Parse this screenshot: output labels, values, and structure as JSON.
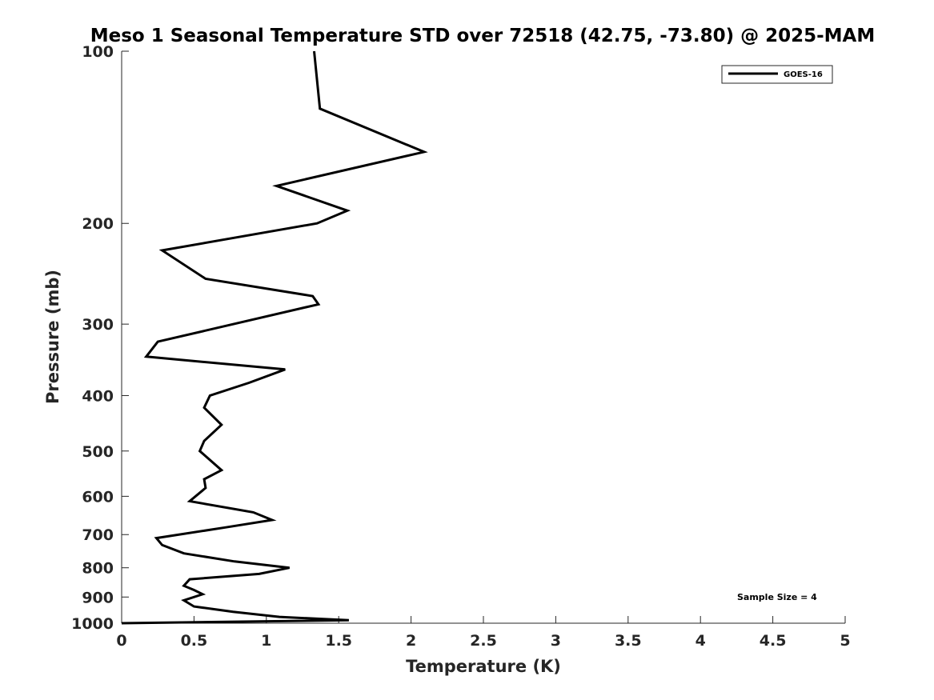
{
  "chart_data": {
    "type": "line",
    "title": "Meso 1 Seasonal Temperature STD over 72518 (42.75, -73.80) @ 2025-MAM",
    "xlabel": "Temperature (K)",
    "ylabel": "Pressure (mb)",
    "xlim": [
      0,
      5
    ],
    "ylim": [
      100,
      1000
    ],
    "yscale": "log",
    "yreversed": true,
    "xticks": [
      0,
      0.5,
      1,
      1.5,
      2,
      2.5,
      3,
      3.5,
      4,
      4.5,
      5
    ],
    "xtick_labels": [
      "0",
      "0.5",
      "1",
      "1.5",
      "2",
      "2.5",
      "3",
      "3.5",
      "4",
      "4.5",
      "5"
    ],
    "yticks": [
      100,
      200,
      300,
      400,
      500,
      600,
      700,
      800,
      900,
      1000
    ],
    "ytick_labels": [
      "100",
      "200",
      "300",
      "400",
      "500",
      "600",
      "700",
      "800",
      "900",
      "1000"
    ],
    "grid": false,
    "legend": {
      "position": "top-right",
      "entries": [
        "GOES-16"
      ]
    },
    "annotation": "Sample Size = 4",
    "series": [
      {
        "name": "GOES-16",
        "x": [
          1.33,
          1.37,
          2.09,
          1.07,
          1.56,
          1.35,
          0.28,
          0.58,
          1.32,
          1.36,
          0.25,
          0.17,
          1.13,
          0.88,
          0.61,
          0.57,
          0.69,
          0.57,
          0.54,
          0.69,
          0.57,
          0.58,
          0.47,
          0.91,
          1.04,
          0.72,
          0.24,
          0.28,
          0.43,
          0.78,
          1.16,
          0.95,
          0.47,
          0.43,
          0.5,
          0.56,
          0.43,
          0.5,
          0.77,
          1.09,
          1.57,
          0.0
        ],
        "y": [
          100,
          126,
          150,
          172,
          190,
          200,
          223,
          250,
          268,
          277,
          322,
          342,
          360,
          380,
          400,
          420,
          450,
          480,
          500,
          540,
          560,
          580,
          612,
          640,
          660,
          680,
          710,
          730,
          755,
          780,
          800,
          820,
          838,
          860,
          875,
          890,
          912,
          935,
          955,
          975,
          988,
          1000
        ]
      }
    ]
  }
}
